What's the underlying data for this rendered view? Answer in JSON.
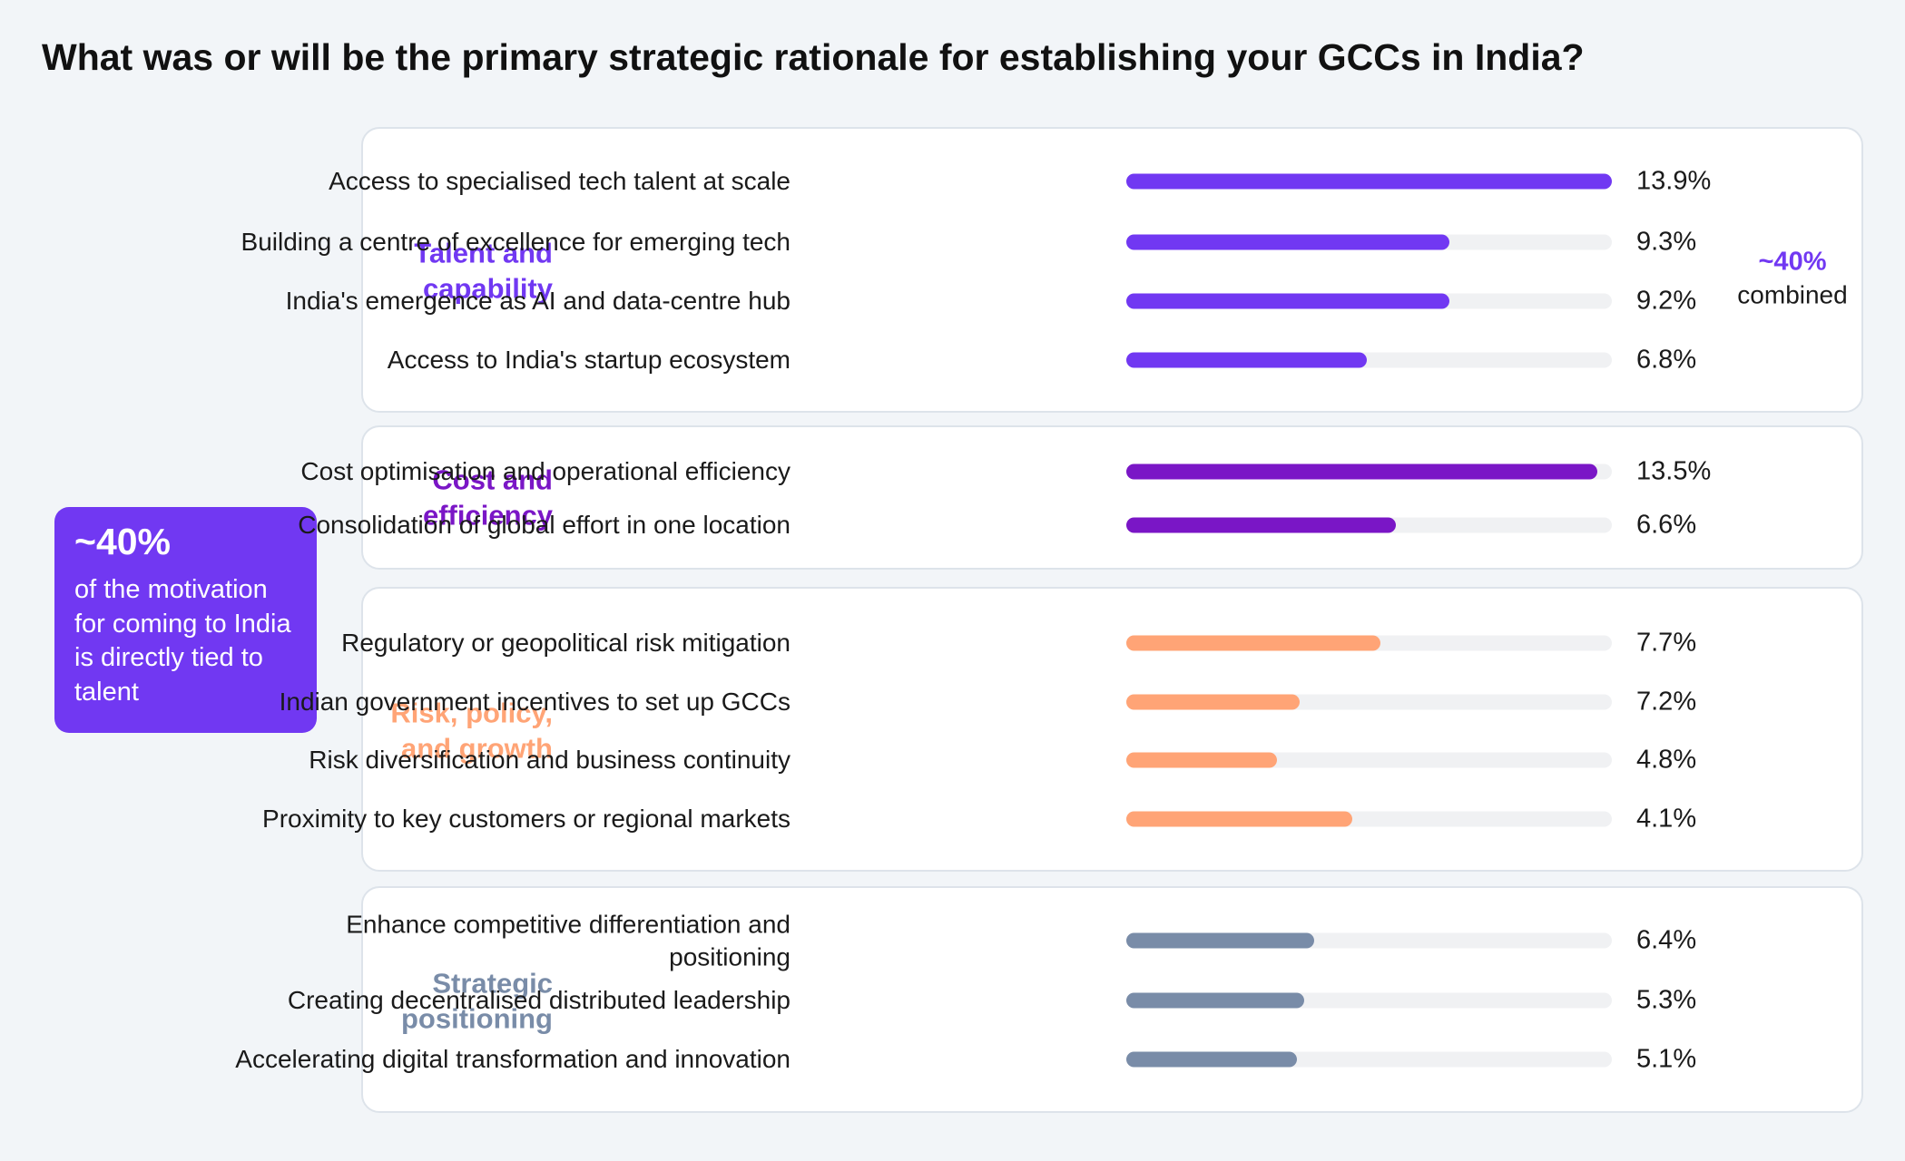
{
  "title": "What was or will be the primary strategic rationale for establishing your GCCs in India?",
  "callout": {
    "value": "~40%",
    "text": "of the motivation for coming to India is directly tied to talent"
  },
  "colors": {
    "talent": "#7138f2",
    "cost": "#7a16c6",
    "risk": "#ffa476",
    "strategic": "#798ca8"
  },
  "chart_data": {
    "type": "bar",
    "orientation": "horizontal",
    "xlim": [
      0,
      14
    ],
    "unit": "%",
    "groups": [
      {
        "name": "Talent and capability",
        "color": "#7138f2",
        "combined": {
          "value": "~40%",
          "label": "combined"
        },
        "items": [
          {
            "label": "Access to specialised tech talent at scale",
            "value": 13.9,
            "value_label": "13.9%",
            "fill": 1.0
          },
          {
            "label": "Building a centre of excellence for emerging tech",
            "value": 9.3,
            "value_label": "9.3%",
            "fill": 0.665
          },
          {
            "label": "India's emergence as AI and data-centre hub",
            "value": 9.2,
            "value_label": "9.2%",
            "fill": 0.665
          },
          {
            "label": "Access to India's startup ecosystem",
            "value": 6.8,
            "value_label": "6.8%",
            "fill": 0.495
          }
        ]
      },
      {
        "name": "Cost and efficiency",
        "color": "#7a16c6",
        "items": [
          {
            "label": "Cost optimisation and operational efficiency",
            "value": 13.5,
            "value_label": "13.5%",
            "fill": 0.97
          },
          {
            "label": "Consolidation of global effort in one location",
            "value": 6.6,
            "value_label": "6.6%",
            "fill": 0.556
          }
        ]
      },
      {
        "name": "Risk, policy, and growth",
        "color": "#ffa476",
        "items": [
          {
            "label": "Regulatory or geopolitical risk mitigation",
            "value": 7.7,
            "value_label": "7.7%",
            "fill": 0.524
          },
          {
            "label": "Indian government incentives to set up GCCs",
            "value": 7.2,
            "value_label": "7.2%",
            "fill": 0.357
          },
          {
            "label": "Risk diversification and business continuity",
            "value": 4.8,
            "value_label": "4.8%",
            "fill": 0.31
          },
          {
            "label": "Proximity to key customers or regional markets",
            "value": 4.1,
            "value_label": "4.1%",
            "fill": 0.466
          }
        ]
      },
      {
        "name": "Strategic positioning",
        "color": "#798ca8",
        "items": [
          {
            "label": "Enhance competitive differentiation and positioning",
            "value": 6.4,
            "value_label": "6.4%",
            "fill": 0.387
          },
          {
            "label": "Creating decentralised distributed leadership",
            "value": 5.3,
            "value_label": "5.3%",
            "fill": 0.366
          },
          {
            "label": "Accelerating digital transformation and innovation",
            "value": 5.1,
            "value_label": "5.1%",
            "fill": 0.352
          }
        ]
      }
    ]
  }
}
